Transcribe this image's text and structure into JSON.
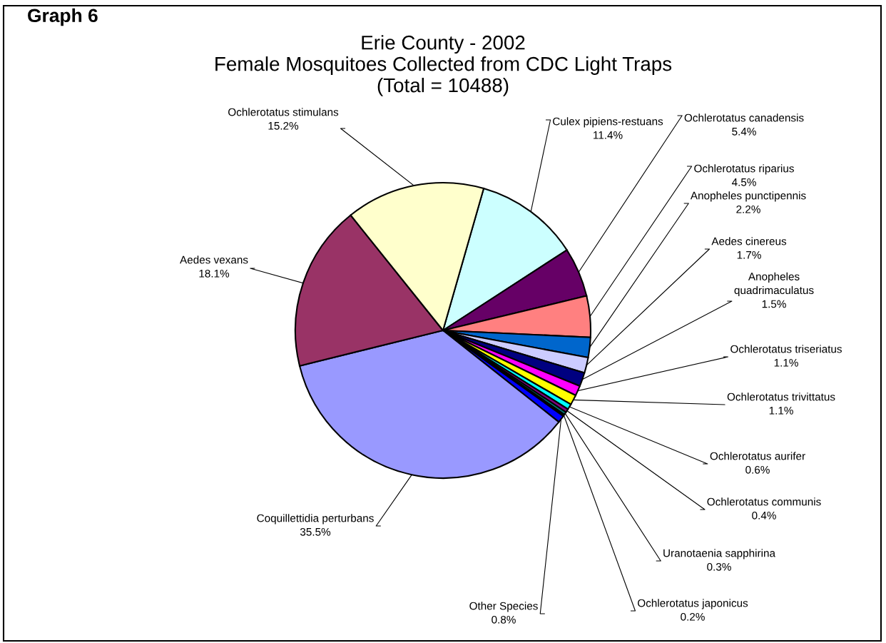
{
  "chart_data": {
    "type": "pie",
    "title": "Erie County - 2002\nFemale Mosquitoes Collected from CDC Light Traps\n(Total = 10488)",
    "annotations": [
      "Graph 6"
    ],
    "categories": [
      "Culex pipiens-restuans",
      "Ochlerotatus canadensis",
      "Ochlerotatus riparius",
      "Anopheles punctipennis",
      "Aedes cinereus",
      "Anopheles quadrimaculatus",
      "Ochlerotatus triseriatus",
      "Ochlerotatus trivittatus",
      "Ochlerotatus aurifer",
      "Ochlerotatus communis",
      "Uranotaenia sapphirina",
      "Ochlerotatus japonicus",
      "Other Species",
      "Coquillettidia perturbans",
      "Aedes vexans",
      "Ochlerotatus stimulans"
    ],
    "values": [
      11.4,
      5.4,
      4.5,
      2.2,
      1.7,
      1.5,
      1.1,
      1.1,
      0.6,
      0.4,
      0.3,
      0.2,
      0.8,
      35.5,
      18.1,
      15.2
    ],
    "colors": [
      "#ccffff",
      "#660066",
      "#ff8080",
      "#0066cc",
      "#ccccff",
      "#000080",
      "#ff00ff",
      "#ffff00",
      "#00ffff",
      "#800080",
      "#008080",
      "#000000",
      "#0000ff",
      "#9999ff",
      "#993366",
      "#ffffcc"
    ],
    "value_labels": [
      "11.4%",
      "5.4%",
      "4.5%",
      "2.2%",
      "1.7%",
      "1.5%",
      "1.1%",
      "1.1%",
      "0.6%",
      "0.4%",
      "0.3%",
      "0.2%",
      "0.8%",
      "35.5%",
      "18.1%",
      "15.2%"
    ],
    "legend": false
  }
}
